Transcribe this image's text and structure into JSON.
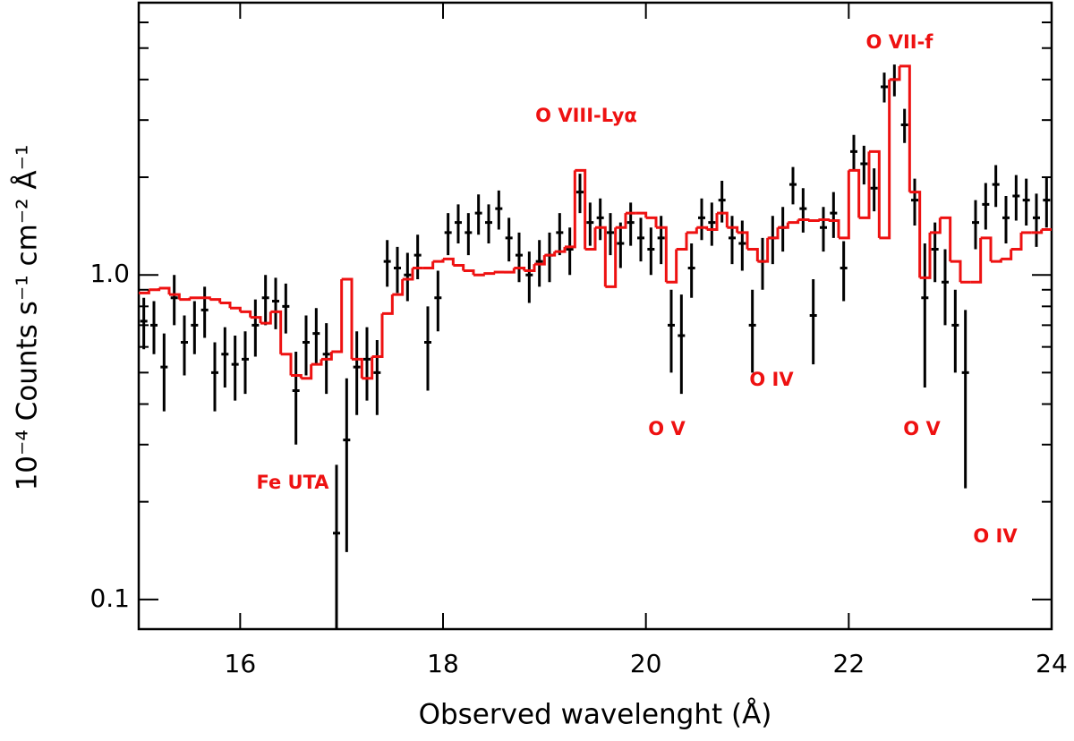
{
  "chart_data": {
    "type": "spectrum",
    "xlabel": "Observed wavelenght (Å)",
    "ylabel": "10⁻⁴ Counts s⁻¹ cm⁻² Å⁻¹",
    "xlim": [
      15,
      24
    ],
    "ylim": [
      0.081,
      6.9
    ],
    "log_y": true,
    "xticks": [
      16,
      18,
      20,
      22,
      24
    ],
    "yticks": [
      {
        "value": 0.1,
        "label": "0.1"
      },
      {
        "value": 1,
        "label": "1.0"
      }
    ],
    "yminorticks": [
      0.2,
      0.3,
      0.4,
      0.5,
      0.6,
      0.7,
      0.8,
      0.9,
      2,
      3,
      4,
      5,
      6
    ],
    "series": [
      {
        "type": "errorbar",
        "color": "#000000",
        "x": [
          15.05,
          15.15,
          15.25,
          15.35,
          15.45,
          15.55,
          15.65,
          15.75,
          15.85,
          15.95,
          16.05,
          16.15,
          16.25,
          16.35,
          16.45,
          16.55,
          16.65,
          16.75,
          16.85,
          16.95,
          17.05,
          17.15,
          17.25,
          17.35,
          17.45,
          17.55,
          17.65,
          17.75,
          17.85,
          17.95,
          18.05,
          18.15,
          18.25,
          18.35,
          18.45,
          18.55,
          18.65,
          18.75,
          18.85,
          18.95,
          19.05,
          19.15,
          19.25,
          19.35,
          19.45,
          19.55,
          19.65,
          19.75,
          19.85,
          19.95,
          20.05,
          20.15,
          20.25,
          20.35,
          20.45,
          20.55,
          20.65,
          20.75,
          20.85,
          20.95,
          21.05,
          21.15,
          21.25,
          21.35,
          21.45,
          21.55,
          21.65,
          21.75,
          21.85,
          21.95,
          22.05,
          22.15,
          22.25,
          22.35,
          22.45,
          22.55,
          22.65,
          22.75,
          22.85,
          22.95,
          23.05,
          23.15,
          23.25,
          23.35,
          23.45,
          23.55,
          23.65,
          23.75,
          23.85,
          23.95
        ],
        "values": [
          0.72,
          0.7,
          0.52,
          0.85,
          0.62,
          0.7,
          0.78,
          0.5,
          0.57,
          0.53,
          0.55,
          0.7,
          0.85,
          0.83,
          0.8,
          0.44,
          0.62,
          0.66,
          0.57,
          0.16,
          0.31,
          0.52,
          0.55,
          0.5,
          1.1,
          1.05,
          1.0,
          1.15,
          0.62,
          0.85,
          1.35,
          1.45,
          1.35,
          1.55,
          1.45,
          1.6,
          1.3,
          1.15,
          1.0,
          1.1,
          1.15,
          1.35,
          1.2,
          1.8,
          1.45,
          1.5,
          1.35,
          1.25,
          1.45,
          1.3,
          1.2,
          1.3,
          0.7,
          0.65,
          1.05,
          1.5,
          1.45,
          1.7,
          1.3,
          1.25,
          0.7,
          1.1,
          1.3,
          1.4,
          1.9,
          1.6,
          0.75,
          1.4,
          1.55,
          1.05,
          2.4,
          2.2,
          1.85,
          3.8,
          4.0,
          2.9,
          1.7,
          0.85,
          1.2,
          0.95,
          0.7,
          0.5,
          1.45,
          1.65,
          1.9,
          1.5,
          1.75,
          1.7,
          1.5,
          1.7
        ],
        "errors": [
          0.13,
          0.13,
          0.14,
          0.15,
          0.13,
          0.13,
          0.14,
          0.12,
          0.12,
          0.12,
          0.12,
          0.14,
          0.15,
          0.15,
          0.14,
          0.14,
          0.13,
          0.13,
          0.14,
          0.1,
          0.17,
          0.15,
          0.14,
          0.13,
          0.18,
          0.17,
          0.17,
          0.18,
          0.18,
          0.18,
          0.2,
          0.2,
          0.2,
          0.22,
          0.2,
          0.22,
          0.2,
          0.2,
          0.18,
          0.18,
          0.2,
          0.2,
          0.2,
          0.25,
          0.22,
          0.22,
          0.2,
          0.2,
          0.22,
          0.2,
          0.2,
          0.22,
          0.2,
          0.22,
          0.2,
          0.22,
          0.22,
          0.25,
          0.22,
          0.22,
          0.2,
          0.2,
          0.22,
          0.22,
          0.25,
          0.25,
          0.22,
          0.22,
          0.25,
          0.22,
          0.3,
          0.3,
          0.28,
          0.4,
          0.45,
          0.35,
          0.28,
          0.4,
          0.25,
          0.25,
          0.2,
          0.28,
          0.25,
          0.27,
          0.28,
          0.25,
          0.28,
          0.28,
          0.28,
          0.3
        ]
      },
      {
        "type": "step",
        "color": "#ee1111",
        "bins": [
          15.0,
          15.1,
          15.2,
          15.3,
          15.4,
          15.5,
          15.6,
          15.7,
          15.8,
          15.9,
          16.0,
          16.1,
          16.2,
          16.3,
          16.4,
          16.5,
          16.6,
          16.7,
          16.8,
          16.9,
          17.0,
          17.1,
          17.2,
          17.3,
          17.4,
          17.5,
          17.6,
          17.7,
          17.8,
          17.9,
          18.0,
          18.1,
          18.2,
          18.3,
          18.4,
          18.5,
          18.6,
          18.7,
          18.8,
          18.9,
          19.0,
          19.1,
          19.2,
          19.3,
          19.4,
          19.5,
          19.6,
          19.7,
          19.8,
          19.9,
          20.0,
          20.1,
          20.2,
          20.3,
          20.4,
          20.5,
          20.6,
          20.7,
          20.8,
          20.9,
          21.0,
          21.1,
          21.2,
          21.3,
          21.4,
          21.5,
          21.6,
          21.7,
          21.8,
          21.9,
          22.0,
          22.1,
          22.2,
          22.3,
          22.4,
          22.5,
          22.6,
          22.7,
          22.8,
          22.9,
          23.0,
          23.1,
          23.2,
          23.3,
          23.4,
          23.5,
          23.6,
          23.7,
          23.8,
          23.9,
          24.0
        ],
        "values": [
          0.88,
          0.9,
          0.91,
          0.87,
          0.84,
          0.85,
          0.85,
          0.84,
          0.82,
          0.79,
          0.77,
          0.74,
          0.71,
          0.77,
          0.57,
          0.49,
          0.48,
          0.53,
          0.55,
          0.58,
          0.97,
          0.55,
          0.48,
          0.56,
          0.76,
          0.87,
          0.97,
          1.05,
          1.05,
          1.1,
          1.12,
          1.07,
          1.03,
          1.0,
          1.01,
          1.02,
          1.02,
          1.05,
          1.03,
          1.08,
          1.15,
          1.18,
          1.22,
          2.1,
          1.2,
          1.4,
          0.92,
          1.4,
          1.55,
          1.55,
          1.5,
          1.4,
          0.95,
          1.2,
          1.35,
          1.4,
          1.38,
          1.55,
          1.4,
          1.35,
          1.2,
          1.1,
          1.3,
          1.4,
          1.45,
          1.48,
          1.47,
          1.48,
          1.47,
          1.3,
          2.1,
          1.5,
          2.4,
          1.3,
          4.0,
          4.4,
          1.8,
          0.98,
          1.35,
          1.5,
          1.1,
          0.95,
          0.95,
          1.3,
          1.1,
          1.12,
          1.2,
          1.35,
          1.35,
          1.38
        ]
      }
    ],
    "annotations": [
      "Fe UTA",
      "O VIII-Lyα",
      "O VII-f",
      "O V",
      "O IV",
      "O V",
      "O IV"
    ]
  }
}
